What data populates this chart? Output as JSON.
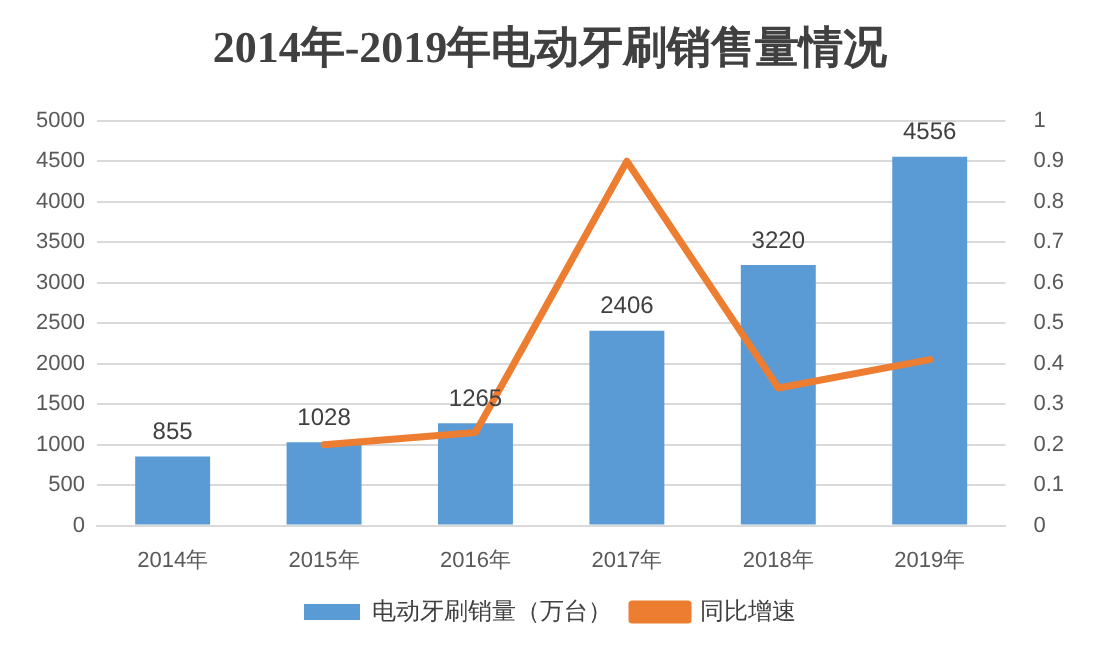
{
  "chart_data": {
    "type": "bar",
    "title": "2014年-2019年电动牙刷销售量情况",
    "categories": [
      "2014年",
      "2015年",
      "2016年",
      "2017年",
      "2018年",
      "2019年"
    ],
    "series": [
      {
        "name": "电动牙刷销量（万台）",
        "color": "#5b9bd5",
        "values": [
          855,
          1028,
          1265,
          2406,
          3220,
          4556
        ],
        "value_labels": [
          "855",
          "1028",
          "1265",
          "2406",
          "3220",
          "4556"
        ]
      },
      {
        "name": "同比增速",
        "type": "line",
        "axis": "y2",
        "color": "#ed7d31",
        "values": [
          null,
          0.2,
          0.23,
          0.9,
          0.34,
          0.41
        ]
      }
    ],
    "ylim": [
      0,
      5000
    ],
    "yticks": [
      0,
      500,
      1000,
      1500,
      2000,
      2500,
      3000,
      3500,
      4000,
      4500,
      5000
    ],
    "y2lim": [
      0,
      1
    ],
    "y2ticks": [
      0,
      0.1,
      0.2,
      0.3,
      0.4,
      0.5,
      0.6,
      0.7,
      0.8,
      0.9,
      1
    ],
    "grid": "y",
    "legend": "bottom",
    "marker": "none"
  }
}
